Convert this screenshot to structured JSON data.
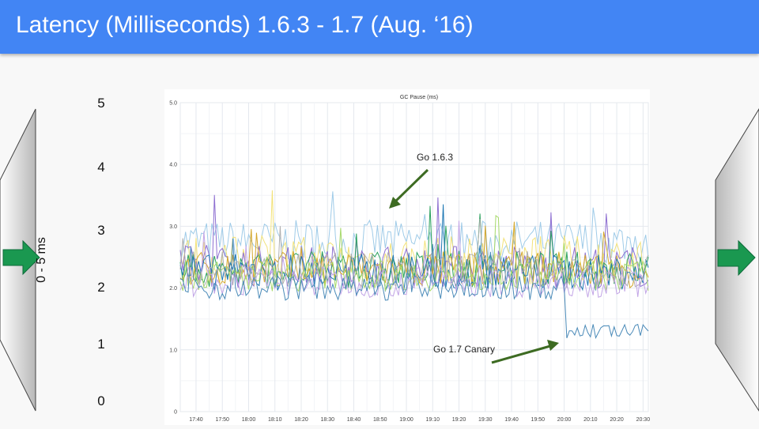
{
  "slide": {
    "title": "Latency (Milliseconds) 1.6.3 - 1.7 (Aug. ‘16)",
    "header_color": "#4285f4",
    "scale_labels": [
      "5",
      "4",
      "3",
      "2",
      "1",
      "0"
    ],
    "scale_caption": "0 - 5 ms",
    "arrow_color": "#1a9850"
  },
  "chart_data": {
    "type": "line",
    "title": "GC Pause (ms)",
    "xlabel": "",
    "ylabel": "",
    "ylim": [
      0,
      5
    ],
    "yticks": [
      "0",
      "1.0",
      "2.0",
      "3.0",
      "4.0",
      "5.0"
    ],
    "xticks": [
      "17:40",
      "17:50",
      "18:00",
      "18:10",
      "18:20",
      "18:30",
      "18:40",
      "18:50",
      "19:00",
      "19:10",
      "19:20",
      "19:30",
      "19:40",
      "19:50",
      "20:00",
      "20:10",
      "20:20",
      "20:30"
    ],
    "grid": true,
    "legend": "none",
    "annotations": [
      {
        "text": "Go 1.6.3",
        "color": "#3d6b22"
      },
      {
        "text": "Go 1.7 Canary",
        "color": "#3d6b22"
      }
    ],
    "series": [
      {
        "color": "#9fcbe8",
        "mean": 2.75,
        "spread": 0.35
      },
      {
        "color": "#f2e27a",
        "mean": 2.45,
        "spread": 0.4
      },
      {
        "color": "#8e6fd1",
        "mean": 2.35,
        "spread": 0.35
      },
      {
        "color": "#2ca25f",
        "mean": 2.3,
        "spread": 0.3
      },
      {
        "color": "#d4a72c",
        "mean": 2.3,
        "spread": 0.3
      },
      {
        "color": "#1f78b4",
        "mean": 2.25,
        "spread": 0.3
      },
      {
        "color": "#b0b0b0",
        "mean": 2.3,
        "spread": 0.3
      },
      {
        "color": "#a6d96a",
        "mean": 2.2,
        "spread": 0.25
      },
      {
        "color": "#c2a5e6",
        "mean": 2.1,
        "spread": 0.25
      },
      {
        "color": "#4a8ab8",
        "mean": 2.0,
        "spread": 0.2,
        "after_20_00_mean": 1.3
      }
    ]
  }
}
